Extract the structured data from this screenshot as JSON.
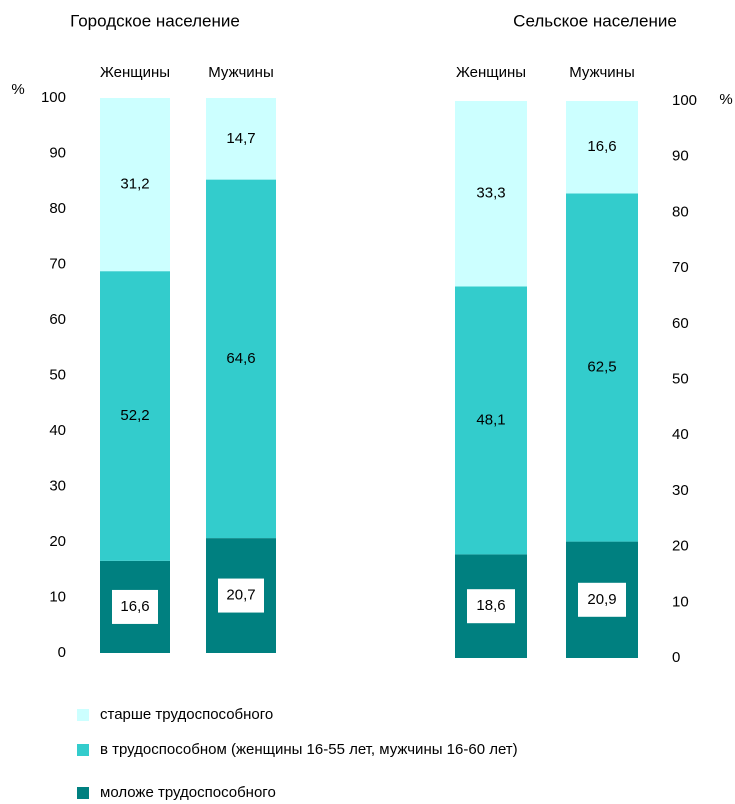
{
  "chart_data": [
    {
      "type": "stacked_bar",
      "title": "Городское население",
      "y_label": "%",
      "categories": [
        "Женщины",
        "Мужчины"
      ],
      "series": [
        {
          "name": "моложе трудоспособного",
          "color": "#008080",
          "values": [
            16.6,
            20.7
          ],
          "value_labels": [
            "16,6",
            "20,7"
          ]
        },
        {
          "name": "в трудоспособном (женщины 16-55 лет, мужчины 16-60 лет)",
          "color": "#33cccc",
          "values": [
            52.2,
            64.6
          ],
          "value_labels": [
            "52,2",
            "64,6"
          ]
        },
        {
          "name": "старше трудоспособного",
          "color": "#ccffff",
          "values": [
            31.2,
            14.7
          ],
          "value_labels": [
            "31,2",
            "14,7"
          ]
        }
      ],
      "ylim": [
        0,
        100
      ],
      "yticks": [
        0,
        10,
        20,
        30,
        40,
        50,
        60,
        70,
        80,
        90,
        100
      ]
    },
    {
      "type": "stacked_bar",
      "title": "Сельское население",
      "y_label": "%",
      "categories": [
        "Женщины",
        "Мужчины"
      ],
      "series": [
        {
          "color": "#008080",
          "values": [
            18.6,
            20.9
          ],
          "value_labels": [
            "18,6",
            "20,9"
          ]
        },
        {
          "color": "#33cccc",
          "values": [
            48.1,
            62.5
          ],
          "value_labels": [
            "48,1",
            "62,5"
          ]
        },
        {
          "color": "#ccffff",
          "values": [
            33.3,
            16.6
          ],
          "value_labels": [
            "33,3",
            "16,6"
          ]
        }
      ],
      "ylim": [
        0,
        100
      ],
      "yticks": [
        0,
        10,
        20,
        30,
        40,
        50,
        60,
        70,
        80,
        90,
        100
      ]
    }
  ]
}
